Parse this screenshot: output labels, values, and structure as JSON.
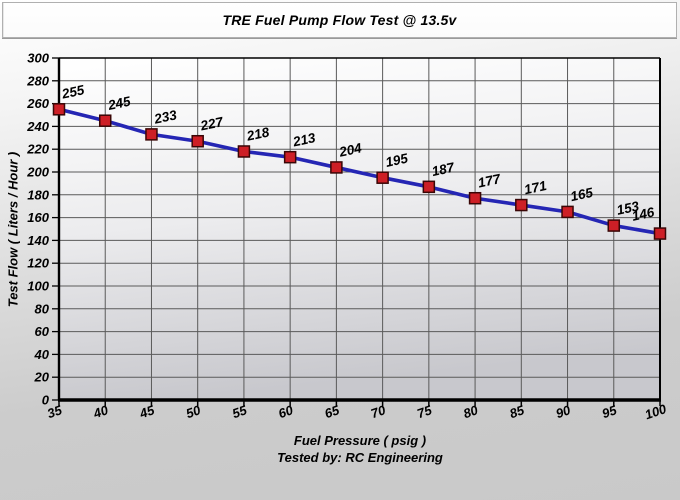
{
  "chart_data": {
    "type": "line",
    "title": "TRE Fuel Pump Flow Test @ 13.5v",
    "xlabel": "Fuel Pressure ( psig )",
    "ylabel": "Test Flow ( Liters / Hour )",
    "footer": "Tested by: RC Engineering",
    "x": [
      35,
      40,
      45,
      50,
      55,
      60,
      65,
      70,
      75,
      80,
      85,
      90,
      95,
      100
    ],
    "values": [
      255,
      245,
      233,
      227,
      218,
      213,
      204,
      195,
      187,
      177,
      171,
      165,
      153,
      146
    ],
    "xlim": [
      35,
      100
    ],
    "ylim": [
      0,
      300
    ],
    "x_tick_step": 5,
    "y_tick_step": 20,
    "grid": true,
    "legend": "none",
    "marker_shape": "square",
    "colors": {
      "line": "#2526b4",
      "marker_fill": "#cd1f26",
      "marker_stroke": "#3a0606",
      "grid": "#5a5a5a",
      "axis": "#000000",
      "label_text": "#000000",
      "plot_bg_top": "#ffffff",
      "plot_bg_bottom": "#c8c8cd",
      "page_bg": "#c9c9c9",
      "title_bar_bg": "#fdfdfd"
    }
  }
}
